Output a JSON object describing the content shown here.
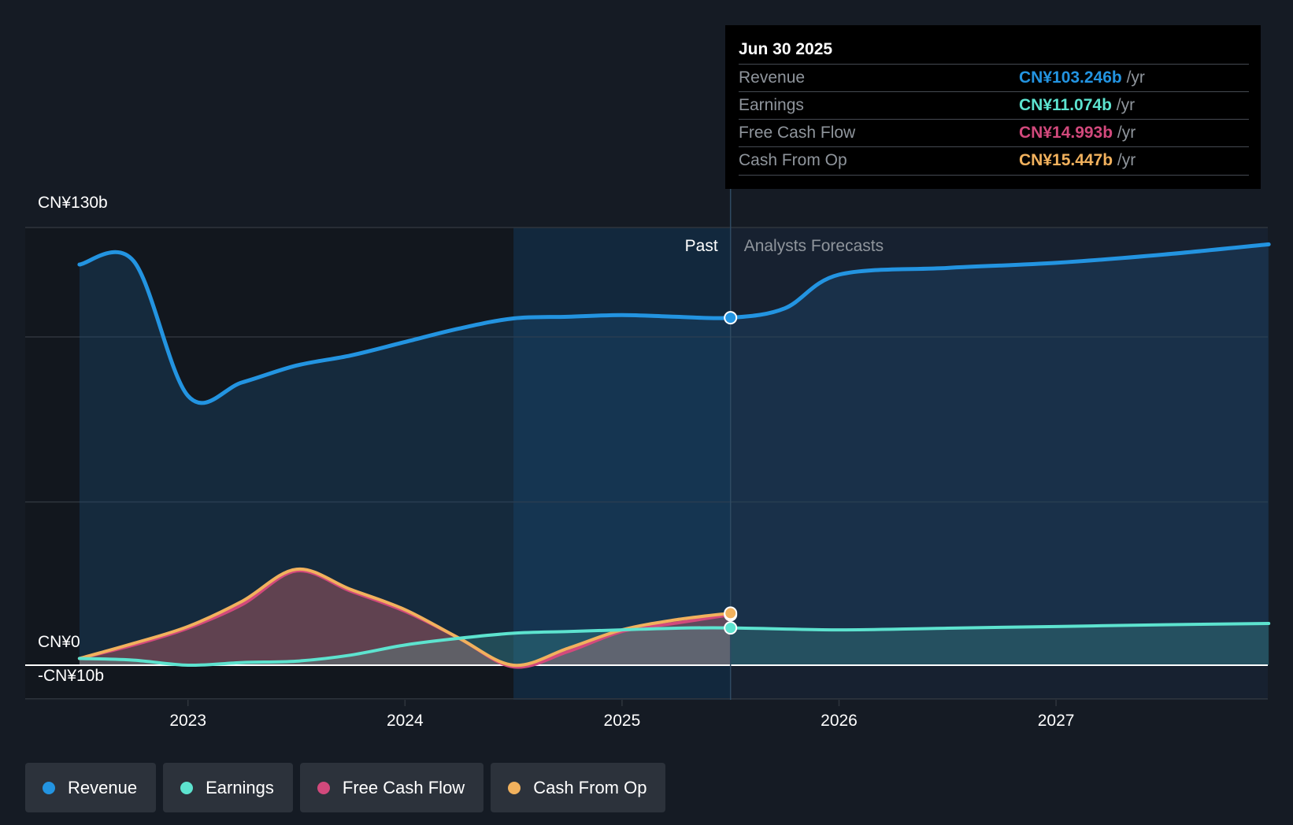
{
  "colors": {
    "background": "#151b24",
    "revenue": "#2394e1",
    "earnings": "#5de3cf",
    "free_cash_flow": "#d2497c",
    "cash_from_op": "#f1b15d",
    "grid": "#2f353d"
  },
  "tooltip": {
    "date": "Jun 30 2025",
    "rows": [
      {
        "label": "Revenue",
        "value": "CN¥103.246b",
        "unit": "/yr",
        "color": "#2394e1"
      },
      {
        "label": "Earnings",
        "value": "CN¥11.074b",
        "unit": "/yr",
        "color": "#5de3cf"
      },
      {
        "label": "Free Cash Flow",
        "value": "CN¥14.993b",
        "unit": "/yr",
        "color": "#d2497c"
      },
      {
        "label": "Cash From Op",
        "value": "CN¥15.447b",
        "unit": "/yr",
        "color": "#f1b15d"
      }
    ]
  },
  "legend": [
    {
      "label": "Revenue",
      "color": "#2394e1"
    },
    {
      "label": "Earnings",
      "color": "#5de3cf"
    },
    {
      "label": "Free Cash Flow",
      "color": "#d2497c"
    },
    {
      "label": "Cash From Op",
      "color": "#f1b15d"
    }
  ],
  "chart_data": {
    "type": "line",
    "title": "",
    "xlabel": "",
    "ylabel": "",
    "y_axis_labels": [
      {
        "label": "CN¥130b",
        "value": 130
      },
      {
        "label": "CN¥0",
        "value": 0
      },
      {
        "label": "-CN¥10b",
        "value": -10
      }
    ],
    "ylim": [
      -10,
      130
    ],
    "xlim": [
      2022.25,
      2027.98
    ],
    "x_ticks": [
      2023,
      2024,
      2025,
      2026,
      2027
    ],
    "x_tick_labels": [
      "2023",
      "2024",
      "2025",
      "2026",
      "2027"
    ],
    "region_labels": {
      "past": "Past",
      "forecast": "Analysts Forecasts"
    },
    "past_end_x": 2025.5,
    "highlight_start_x": 2024.5,
    "series": [
      {
        "name": "Revenue",
        "key": "revenue",
        "x": [
          2022.5,
          2022.75,
          2023.0,
          2023.25,
          2023.5,
          2023.75,
          2024.0,
          2024.25,
          2024.5,
          2024.75,
          2025.0,
          2025.25,
          2025.5,
          2025.75,
          2026.0,
          2026.5,
          2027.0,
          2027.5,
          2027.98
        ],
        "y": [
          119,
          120,
          80,
          84,
          89,
          92,
          96,
          100,
          103,
          103.5,
          104,
          103.5,
          103.2,
          106,
          116,
          118,
          119.5,
          122,
          125
        ]
      },
      {
        "name": "Earnings",
        "key": "earnings",
        "x": [
          2022.5,
          2022.75,
          2023.0,
          2023.25,
          2023.5,
          2023.75,
          2024.0,
          2024.25,
          2024.5,
          2024.75,
          2025.0,
          2025.25,
          2025.5,
          2026.0,
          2026.5,
          2027.0,
          2027.5,
          2027.98
        ],
        "y": [
          2,
          1.5,
          0,
          0.8,
          1.2,
          3,
          6,
          8,
          9.5,
          10,
          10.5,
          11,
          11.074,
          10.5,
          11,
          11.5,
          12,
          12.4
        ]
      },
      {
        "name": "Free Cash Flow",
        "key": "free_cash_flow",
        "x": [
          2022.5,
          2022.75,
          2023.0,
          2023.25,
          2023.5,
          2023.75,
          2024.0,
          2024.25,
          2024.5,
          2024.75,
          2025.0,
          2025.25,
          2025.5
        ],
        "y": [
          2,
          6,
          11,
          18,
          28,
          22,
          16,
          8,
          -0.5,
          4,
          10,
          12.5,
          14.993
        ]
      },
      {
        "name": "Cash From Op",
        "key": "cash_from_op",
        "x": [
          2022.5,
          2022.75,
          2023.0,
          2023.25,
          2023.5,
          2023.75,
          2024.0,
          2024.25,
          2024.5,
          2024.75,
          2025.0,
          2025.25,
          2025.5
        ],
        "y": [
          2,
          6.5,
          11.5,
          19,
          28.5,
          22.5,
          16.5,
          8,
          0,
          5,
          10.5,
          13.5,
          15.447
        ]
      }
    ]
  }
}
